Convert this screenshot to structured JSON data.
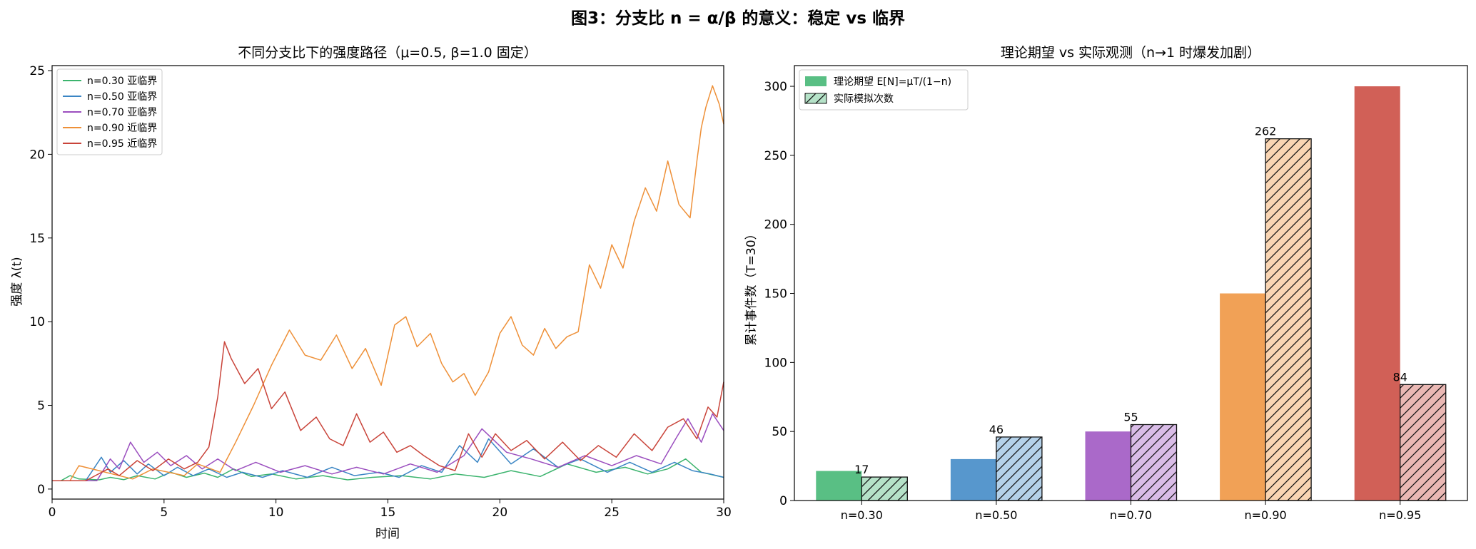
{
  "figure": {
    "suptitle": "图3：分支比 n = α/β 的意义：稳定 vs 临界"
  },
  "chart_data": [
    {
      "type": "line",
      "title": "不同分支比下的强度路径（μ=0.5, β=1.0 固定）",
      "xlabel": "时间",
      "ylabel": "强度 λ(t)",
      "xlim": [
        0,
        30
      ],
      "ylim": [
        -0.6,
        25.3
      ],
      "xticks": [
        "0",
        "5",
        "10",
        "15",
        "20",
        "25",
        "30"
      ],
      "yticks": [
        "0",
        "5",
        "10",
        "15",
        "20",
        "25"
      ],
      "grid": false,
      "legend_position": "top-left",
      "series": [
        {
          "name": "n=0.30 亚临界",
          "color": "#3cb46e",
          "x": [
            0,
            0.4,
            0.8,
            1.2,
            2.1,
            2.6,
            3.2,
            3.8,
            4.6,
            5.3,
            6.0,
            6.8,
            7.4,
            8.1,
            8.9,
            9.8,
            10.9,
            12.1,
            13.2,
            14.3,
            15.6,
            16.9,
            18.0,
            19.3,
            20.5,
            21.8,
            23.0,
            24.3,
            25.6,
            26.6,
            27.5,
            28.3,
            29.0,
            30.0
          ],
          "y": [
            0.5,
            0.5,
            0.8,
            0.6,
            0.55,
            0.7,
            0.56,
            0.8,
            0.6,
            1.0,
            0.7,
            0.95,
            0.7,
            1.2,
            0.75,
            0.9,
            0.6,
            0.8,
            0.55,
            0.7,
            0.8,
            0.6,
            0.9,
            0.7,
            1.1,
            0.75,
            1.5,
            1.0,
            1.3,
            0.9,
            1.2,
            1.8,
            1.0,
            0.7
          ]
        },
        {
          "name": "n=0.50 亚临界",
          "color": "#3a85c4",
          "x": [
            0,
            1.5,
            2.2,
            2.6,
            3.2,
            3.8,
            4.3,
            5.0,
            5.6,
            6.3,
            7.0,
            7.8,
            8.5,
            9.4,
            10.3,
            11.4,
            12.5,
            13.5,
            14.6,
            15.5,
            16.5,
            17.4,
            18.2,
            19.0,
            19.5,
            20.5,
            21.5,
            22.6,
            23.6,
            24.8,
            25.8,
            26.8,
            27.8,
            28.6,
            29.4,
            30.0
          ],
          "y": [
            0.5,
            0.5,
            1.9,
            1.0,
            1.7,
            0.9,
            1.5,
            0.8,
            1.3,
            0.8,
            1.2,
            0.7,
            1.0,
            0.7,
            1.1,
            0.7,
            1.3,
            0.8,
            1.0,
            0.7,
            1.4,
            1.0,
            2.6,
            1.6,
            3.0,
            1.5,
            2.4,
            1.3,
            1.8,
            1.0,
            1.6,
            1.0,
            1.6,
            1.1,
            0.9,
            0.7
          ]
        },
        {
          "name": "n=0.70 亚临界",
          "color": "#9b4fbf",
          "x": [
            0,
            2.0,
            2.6,
            3.0,
            3.5,
            4.1,
            4.7,
            5.3,
            6.0,
            6.7,
            7.4,
            8.2,
            9.1,
            10.2,
            11.3,
            12.5,
            13.6,
            14.8,
            16.0,
            17.2,
            18.4,
            19.2,
            20.3,
            21.4,
            22.6,
            23.8,
            25.0,
            26.1,
            27.2,
            27.9,
            28.4,
            29.0,
            29.5,
            30.0
          ],
          "y": [
            0.5,
            0.5,
            1.8,
            1.2,
            2.8,
            1.6,
            2.2,
            1.4,
            2.0,
            1.2,
            1.8,
            1.1,
            1.6,
            1.0,
            1.4,
            0.9,
            1.3,
            0.9,
            1.5,
            1.0,
            2.0,
            3.6,
            2.2,
            1.8,
            1.3,
            2.0,
            1.4,
            2.0,
            1.5,
            3.1,
            4.2,
            2.8,
            4.5,
            3.5
          ]
        },
        {
          "name": "n=0.90 近临界",
          "color": "#ee9038",
          "x": [
            0,
            0.8,
            1.2,
            3.6,
            4.5,
            5.9,
            6.5,
            7.5,
            8.2,
            9.0,
            9.8,
            10.6,
            11.3,
            12.0,
            12.7,
            13.4,
            14.0,
            14.7,
            15.3,
            15.8,
            16.3,
            16.9,
            17.4,
            17.9,
            18.4,
            18.9,
            19.5,
            20.0,
            20.5,
            21.0,
            21.5,
            22.0,
            22.5,
            23.0,
            23.5,
            24.0,
            24.5,
            25.0,
            25.5,
            26.0,
            26.5,
            27.0,
            27.5,
            28.0,
            28.5,
            28.8,
            29.0,
            29.2,
            29.5,
            29.8,
            30.0
          ],
          "y": [
            0.5,
            0.5,
            1.4,
            0.6,
            1.2,
            0.8,
            1.5,
            1.0,
            2.8,
            5.0,
            7.4,
            9.5,
            8.0,
            7.7,
            9.2,
            7.2,
            8.4,
            6.2,
            9.8,
            10.3,
            8.5,
            9.3,
            7.5,
            6.4,
            6.9,
            5.6,
            7.0,
            9.3,
            10.3,
            8.6,
            8.0,
            9.6,
            8.4,
            9.1,
            9.4,
            13.4,
            12.0,
            14.6,
            13.2,
            16.0,
            18.0,
            16.6,
            19.6,
            17.0,
            16.2,
            19.6,
            21.6,
            22.8,
            24.1,
            23.0,
            21.8
          ]
        },
        {
          "name": "n=0.95 近临界",
          "color": "#c9443a",
          "x": [
            0,
            1.5,
            2.5,
            3.0,
            3.8,
            4.5,
            5.2,
            5.9,
            6.5,
            7.0,
            7.4,
            7.7,
            8.0,
            8.6,
            9.2,
            9.8,
            10.4,
            11.1,
            11.8,
            12.4,
            13.0,
            13.6,
            14.2,
            14.8,
            15.4,
            16.0,
            16.6,
            17.3,
            18.0,
            18.6,
            19.2,
            19.8,
            20.5,
            21.2,
            22.0,
            22.8,
            23.6,
            24.4,
            25.2,
            26.0,
            26.8,
            27.5,
            28.2,
            28.8,
            29.3,
            29.7,
            30.0
          ],
          "y": [
            0.5,
            0.5,
            1.2,
            0.8,
            1.7,
            1.1,
            1.8,
            1.2,
            1.6,
            2.5,
            5.5,
            8.8,
            7.8,
            6.3,
            7.2,
            4.8,
            5.8,
            3.5,
            4.3,
            3.0,
            2.6,
            4.5,
            2.8,
            3.4,
            2.2,
            2.6,
            2.0,
            1.4,
            1.1,
            3.3,
            1.9,
            3.3,
            2.3,
            2.9,
            1.8,
            2.8,
            1.7,
            2.6,
            1.9,
            3.3,
            2.3,
            3.7,
            4.2,
            3.0,
            4.9,
            4.3,
            6.4
          ]
        }
      ]
    },
    {
      "type": "bar",
      "title": "理论期望 vs 实际观测（n→1 时爆发加剧）",
      "xlabel": "",
      "ylabel": "累计事件数（T=30）",
      "categories": [
        "n=0.30",
        "n=0.50",
        "n=0.70",
        "n=0.90",
        "n=0.95"
      ],
      "ylim": [
        0,
        315
      ],
      "yticks": [
        "0",
        "50",
        "100",
        "150",
        "200",
        "250",
        "300"
      ],
      "grid": false,
      "legend_position": "top-left",
      "colors": [
        "#3cb46e",
        "#3a85c4",
        "#9b4fbf",
        "#ee9038",
        "#c9443a"
      ],
      "series": [
        {
          "name": "理论期望 E[N]=μT/(1−n)",
          "values": [
            21.4,
            30,
            50,
            150,
            300
          ],
          "style": "solid"
        },
        {
          "name": "实际模拟次数",
          "values": [
            17,
            46,
            55,
            262,
            84
          ],
          "style": "hatched"
        }
      ],
      "data_labels": [
        "17",
        "46",
        "55",
        "262",
        "84"
      ]
    }
  ]
}
